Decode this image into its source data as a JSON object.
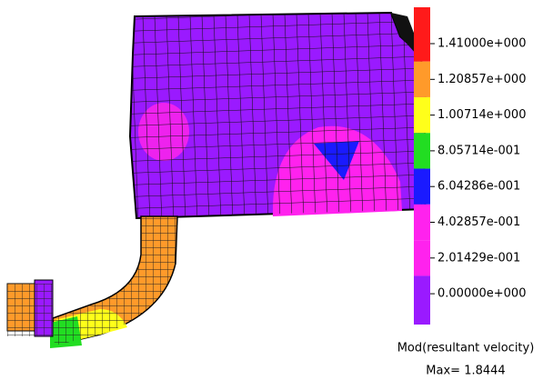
{
  "legend": {
    "items": [
      {
        "label": "1.41000e+000",
        "color": "#ff1a1a"
      },
      {
        "label": "1.20857e+000",
        "color": "#ff9a2a"
      },
      {
        "label": "1.00714e+000",
        "color": "#ffff1a"
      },
      {
        "label": "8.05714e-001",
        "color": "#22dd22"
      },
      {
        "label": "6.04286e-001",
        "color": "#1a1aff"
      },
      {
        "label": "4.02857e-001",
        "color": "#ff22ee"
      },
      {
        "label": "2.01429e-001",
        "color": "#ff22ee"
      },
      {
        "label": "0.00000e+000",
        "color": "#9a1aff"
      }
    ],
    "title": "Mod(resultant velocity)",
    "max": "Max= 1.8444"
  }
}
